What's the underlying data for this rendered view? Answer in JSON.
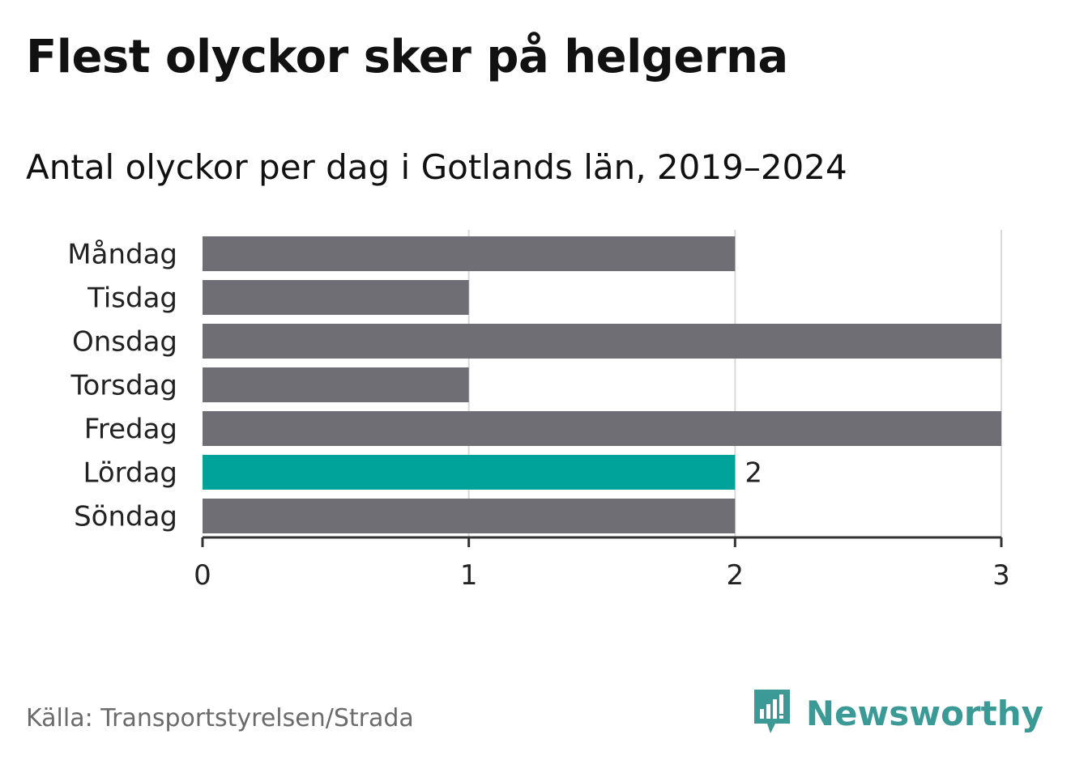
{
  "title": "Flest olyckor sker på helgerna",
  "subtitle": "Antal olyckor per dag i Gotlands län, 2019–2024",
  "source": "Källa: Transportstyrelsen/Strada",
  "brand": {
    "name": "Newsworthy",
    "icon": "newsworthy-logo-icon",
    "color": "#3b9a95"
  },
  "colors": {
    "bar": "#6f6e74",
    "highlight": "#00a39a",
    "grid": "#d9d9d9",
    "axis": "#333333"
  },
  "chart_data": {
    "type": "bar",
    "orientation": "horizontal",
    "categories": [
      "Måndag",
      "Tisdag",
      "Onsdag",
      "Torsdag",
      "Fredag",
      "Lördag",
      "Söndag"
    ],
    "values": [
      2,
      1,
      3,
      1,
      3,
      2,
      2
    ],
    "highlight_index": 5,
    "data_labels": [
      null,
      null,
      null,
      null,
      null,
      "2",
      null
    ],
    "xlim": [
      0,
      3
    ],
    "xticks": [
      "0",
      "1",
      "2",
      "3"
    ],
    "grid": true
  }
}
